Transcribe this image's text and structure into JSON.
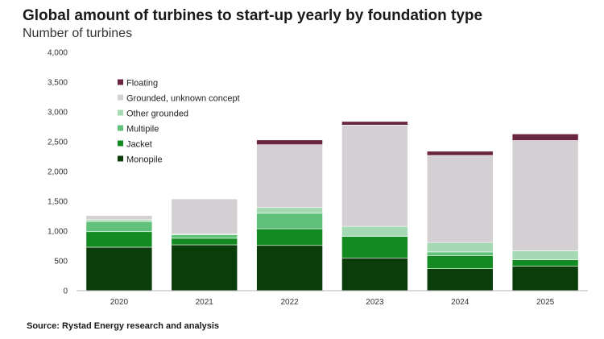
{
  "title": "Global amount of turbines to start-up yearly by foundation type",
  "subtitle": "Number of turbines",
  "source": "Source: Rystad Energy research and analysis",
  "chart_data": {
    "type": "bar",
    "stacked": true,
    "categories": [
      "2020",
      "2021",
      "2022",
      "2023",
      "2024",
      "2025"
    ],
    "ylim": [
      0,
      4000
    ],
    "yticks": [
      0,
      500,
      1000,
      1500,
      2000,
      2500,
      3000,
      3500,
      4000
    ],
    "ytick_labels": [
      "0",
      "500",
      "1,000",
      "1,500",
      "2,000",
      "2,500",
      "3,000",
      "3,500",
      "4,000"
    ],
    "grid": false,
    "legend_position": "top-left",
    "series": [
      {
        "name": "Monopile",
        "color": "#0b3d0b",
        "values": [
          730,
          770,
          760,
          550,
          370,
          410
        ]
      },
      {
        "name": "Jacket",
        "color": "#138a22",
        "values": [
          260,
          110,
          280,
          360,
          220,
          110
        ]
      },
      {
        "name": "Multipile",
        "color": "#5fc17a",
        "values": [
          170,
          60,
          260,
          0,
          60,
          0
        ]
      },
      {
        "name": "Other grounded",
        "color": "#a5d9b3",
        "values": [
          30,
          10,
          100,
          170,
          160,
          150
        ]
      },
      {
        "name": "Grounded, unknown concept",
        "color": "#d3cfd2",
        "values": [
          70,
          590,
          1050,
          1700,
          1460,
          1850
        ]
      },
      {
        "name": "Floating",
        "color": "#6a2640",
        "values": [
          0,
          0,
          80,
          60,
          70,
          110
        ]
      }
    ]
  }
}
